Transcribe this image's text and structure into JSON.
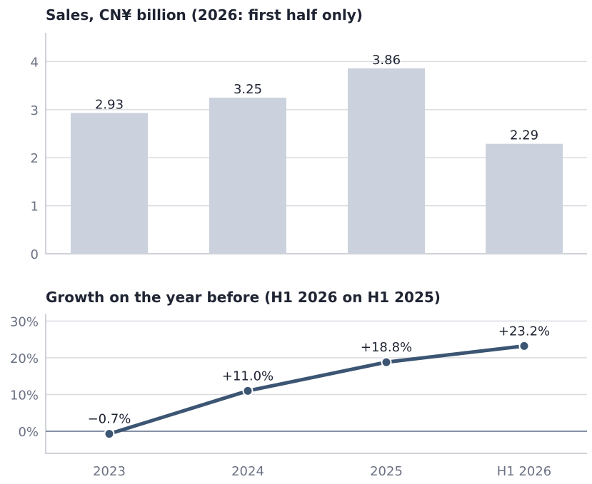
{
  "chart_data": [
    {
      "type": "bar",
      "title": "Sales, CN¥ billion (2026: first half only)",
      "categories": [
        "2023",
        "2024",
        "2025",
        "H1 2026"
      ],
      "values": [
        2.93,
        3.25,
        3.86,
        2.29
      ],
      "value_labels": [
        "2.93",
        "3.25",
        "3.86",
        "2.29"
      ],
      "highlighted_category": "H1 2026",
      "highlight_color": "#5b8ff0",
      "bar_color": "#cbd2de",
      "ylim": [
        0,
        4.6
      ],
      "yticks": [
        0,
        1,
        2,
        3,
        4
      ],
      "ytick_labels": [
        "0",
        "1",
        "2",
        "3",
        "4"
      ],
      "grid": true
    },
    {
      "type": "line",
      "title": "Growth on the year before (H1 2026 on H1 2025)",
      "categories": [
        "2023",
        "2024",
        "2025",
        "H1 2026"
      ],
      "values": [
        -0.7,
        11.0,
        18.8,
        23.2
      ],
      "value_labels": [
        "−0.7%",
        "+11.0%",
        "+18.8%",
        "+23.2%"
      ],
      "line_color": "#3b5573",
      "ylim": [
        -6,
        32
      ],
      "yticks": [
        0,
        10,
        20,
        30
      ],
      "ytick_labels": [
        "0%",
        "10%",
        "20%",
        "30%"
      ],
      "grid": true
    }
  ]
}
